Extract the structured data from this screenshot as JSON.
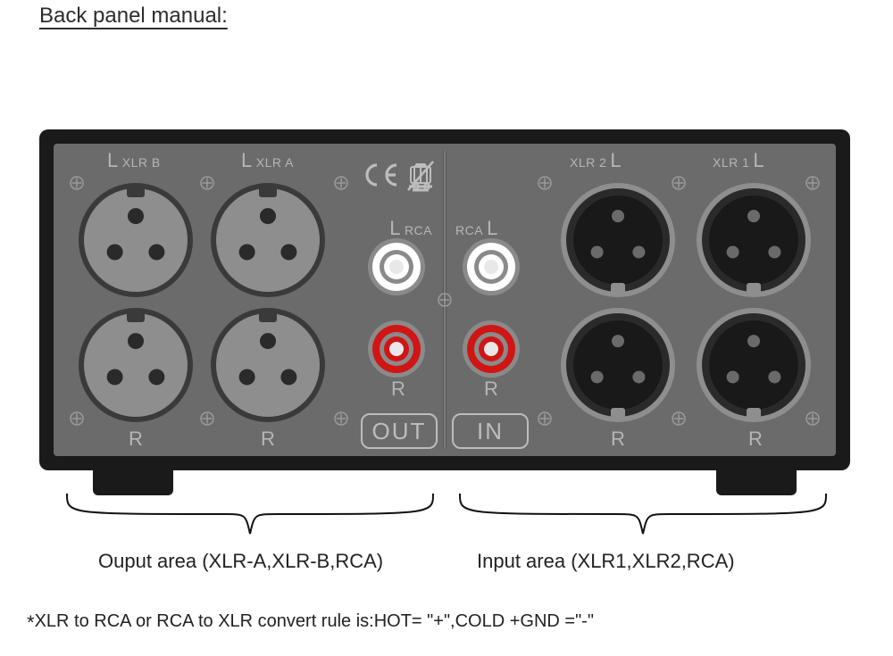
{
  "title": "Back panel manual:",
  "chassis": {
    "body_color": "#1a1a1a",
    "plate_color": "#6b6b6b"
  },
  "output": {
    "badge": "OUT",
    "xlr_b": {
      "label_big": "L",
      "label_small": "XLR B",
      "r": "R"
    },
    "xlr_a": {
      "label_big": "L",
      "label_small": "XLR A",
      "r": "R"
    },
    "rca": {
      "label_big": "L",
      "label_small": "RCA",
      "r": "R"
    }
  },
  "input": {
    "badge": "IN",
    "rca": {
      "label_small": "RCA",
      "label_big": "L",
      "r": "R"
    },
    "xlr2": {
      "label_small": "XLR 2",
      "label_big": "L",
      "r": "R"
    },
    "xlr1": {
      "label_small": "XLR 1",
      "label_big": "L",
      "r": "R"
    }
  },
  "icons": {
    "ce": "CE",
    "weee": "WEEE"
  },
  "captions": {
    "output": "Ouput area (XLR-A,XLR-B,RCA)",
    "input": "Input area (XLR1,XLR2,RCA)"
  },
  "footnote": "XLR to RCA or RCA to XLR convert rule is:HOT= \"+\",COLD +GND =\"-\"",
  "style": {
    "xlr_female_body": "#8e8e8e",
    "xlr_female_ring": "#3a3a3a",
    "xlr_female_pin": "#2a2a2a",
    "xlr_male_body": "#2a2a2a",
    "xlr_male_ring": "#8e8e8e",
    "xlr_male_pin": "#6a6a6a",
    "rca_white": "#ffffff",
    "rca_red": "#d01515",
    "rca_ring": "#8a8a8a",
    "jack_diam_xlr": 128,
    "jack_diam_rca": 64,
    "label_color": "#b6b6b6"
  }
}
